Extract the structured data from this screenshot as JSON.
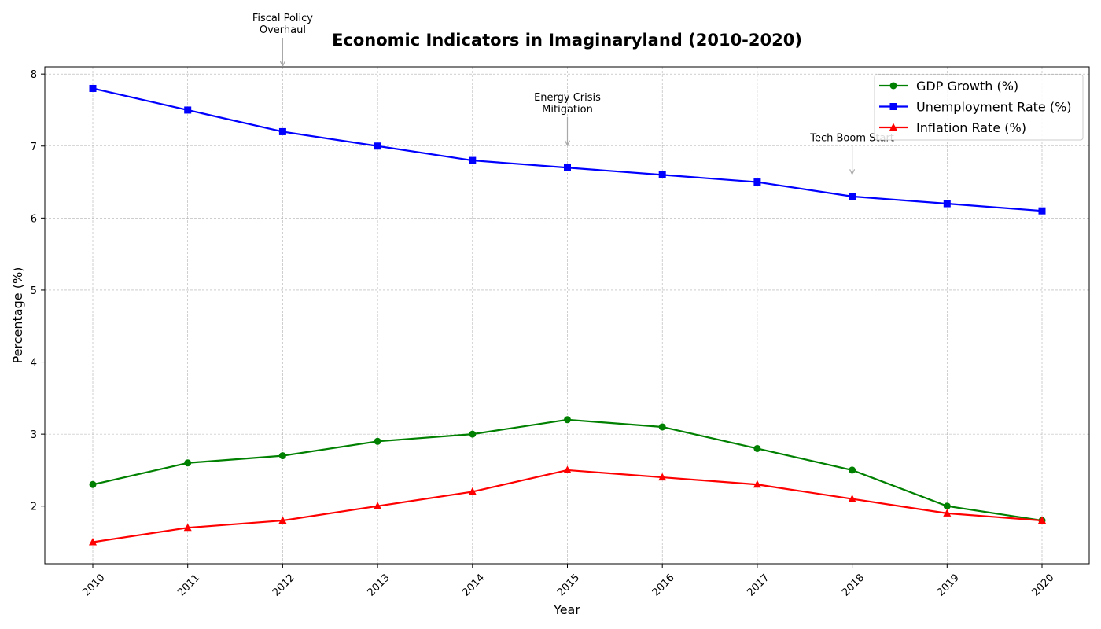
{
  "chart_data": {
    "type": "line",
    "title": "Economic Indicators in Imaginaryland (2010-2020)",
    "xlabel": "Year",
    "ylabel": "Percentage (%)",
    "x": [
      2010,
      2011,
      2012,
      2013,
      2014,
      2015,
      2016,
      2017,
      2018,
      2019,
      2020
    ],
    "ylim": [
      1.2,
      8.1
    ],
    "yticks": [
      2,
      3,
      4,
      5,
      6,
      7,
      8
    ],
    "grid": true,
    "legend_position": "top-right",
    "series": [
      {
        "name": "GDP Growth (%)",
        "color": "#008000",
        "marker": "circle",
        "values": [
          2.3,
          2.6,
          2.7,
          2.9,
          3.0,
          3.2,
          3.1,
          2.8,
          2.5,
          2.0,
          1.8
        ]
      },
      {
        "name": "Unemployment Rate (%)",
        "color": "#0000ff",
        "marker": "square",
        "values": [
          7.8,
          7.5,
          7.2,
          7.0,
          6.8,
          6.7,
          6.6,
          6.5,
          6.3,
          6.2,
          6.1
        ]
      },
      {
        "name": "Inflation Rate (%)",
        "color": "#ff0000",
        "marker": "triangle",
        "values": [
          1.5,
          1.7,
          1.8,
          2.0,
          2.2,
          2.5,
          2.4,
          2.3,
          2.1,
          1.9,
          1.8
        ]
      }
    ],
    "annotations": [
      {
        "text": "Fiscal Policy\nOverhaul",
        "x": 2012,
        "y": 8.1
      },
      {
        "text": "Energy Crisis\nMitigation",
        "x": 2015,
        "y": 7.0
      },
      {
        "text": "Tech Boom Start",
        "x": 2018,
        "y": 6.6
      }
    ]
  }
}
